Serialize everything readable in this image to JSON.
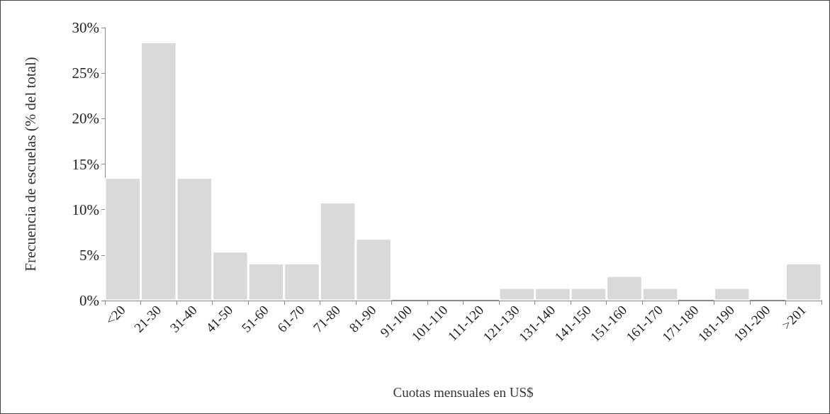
{
  "chart_data": {
    "type": "bar",
    "xlabel": "Cuotas mensuales en US$",
    "ylabel": "Frecuencia de escuelas (% del total)",
    "categories": [
      "<20",
      "21-30",
      "31-40",
      "41-50",
      "51-60",
      "61-70",
      "71-80",
      "81-90",
      "91-100",
      "101-110",
      "111-120",
      "121-130",
      "131-140",
      "141-150",
      "151-160",
      "161-170",
      "171-180",
      "181-190",
      "191-200",
      ">201"
    ],
    "values": [
      13.5,
      28.4,
      13.5,
      5.4,
      4.1,
      4.1,
      10.8,
      6.8,
      0,
      0,
      0,
      1.4,
      1.4,
      1.4,
      2.7,
      1.4,
      0,
      1.4,
      0,
      4.1
    ],
    "color": "#d9d9d9",
    "ylim": [
      0,
      30
    ],
    "yticks": [
      {
        "value": 0,
        "label": "0%"
      },
      {
        "value": 5,
        "label": "5%"
      },
      {
        "value": 10,
        "label": "10%"
      },
      {
        "value": 15,
        "label": "15%"
      },
      {
        "value": 20,
        "label": "20%"
      },
      {
        "value": 25,
        "label": "25%"
      },
      {
        "value": 30,
        "label": "30%"
      }
    ],
    "grid": false
  }
}
